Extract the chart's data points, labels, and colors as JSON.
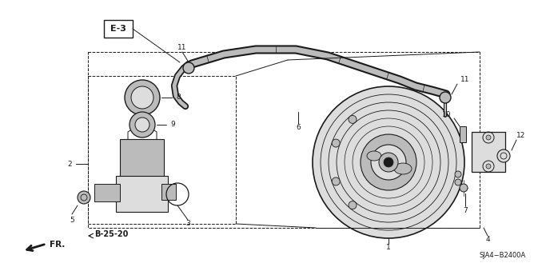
{
  "bg_color": "#ffffff",
  "fig_width": 6.4,
  "fig_height": 3.19,
  "diagram_code": "SJA4−B2400A",
  "lc": "#1a1a1a",
  "gray1": "#888888",
  "gray2": "#bbbbbb",
  "gray3": "#dddddd"
}
